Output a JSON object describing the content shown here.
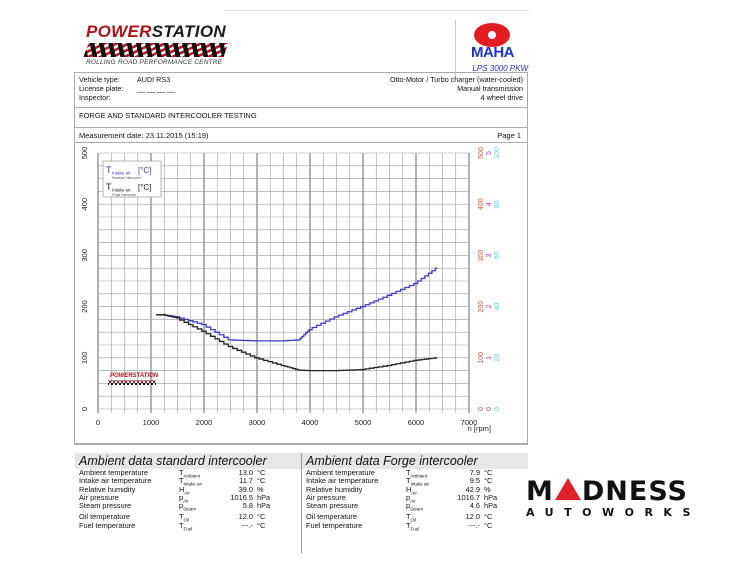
{
  "header": {
    "brand": {
      "part1": "POWER",
      "part2": "STATION",
      "subtitle": "ROLLING ROAD PERFORMANCE CENTRE"
    },
    "maha": {
      "word": "MAHA",
      "model": "LPS 3000 PKW"
    }
  },
  "vehicle": {
    "type_label": "Vehicle type:",
    "type_value": "AUDI RS3",
    "plate_label": "License plate:",
    "plate_value": "__ __ __ __",
    "inspector_label": "Inspector:",
    "engine": "Otto-Motor / Turbo charger (water-cooled)",
    "transmission": "Manual transmission",
    "drive": "4 wheel drive"
  },
  "test_title": "FORGE AND STANDARD INTERCOOLER TESTING",
  "measurement": {
    "date_label": "Measurement date: 23.11.2015 (15:19)",
    "page": "Page 1"
  },
  "legend": [
    {
      "label": "T",
      "sub": "Intake air",
      "unit": "[°C]",
      "caption": "Standard Intercooler",
      "color": "#3a3ac8"
    },
    {
      "label": "T",
      "sub": "Intake air",
      "unit": "[°C]",
      "caption": "Forge Intercooler",
      "color": "#222222"
    }
  ],
  "chart_data": {
    "type": "line",
    "title": "Intake air temperature vs engine speed",
    "xlabel": "n [rpm]",
    "ylabel": "T Intake air [°C]",
    "xlim": [
      0,
      7000
    ],
    "ylim": [
      0,
      500
    ],
    "x_ticks": [
      0,
      1000,
      2000,
      3000,
      4000,
      5000,
      6000,
      7000
    ],
    "y_ticks": [
      0,
      100,
      200,
      300,
      400,
      500
    ],
    "right_axes": [
      {
        "color": "#e0552a",
        "ticks": [
          0,
          100,
          200,
          300,
          400,
          500
        ]
      },
      {
        "color": "#d030d0",
        "ticks": [
          0,
          1,
          2,
          3,
          4,
          5
        ]
      },
      {
        "color": "#50d8e8",
        "ticks": [
          0,
          20,
          40,
          60,
          80,
          100
        ]
      }
    ],
    "grid": true,
    "legend_position": "top-left",
    "x": [
      1250,
      1500,
      2000,
      2500,
      3000,
      3500,
      3800,
      4000,
      4500,
      5000,
      5500,
      6000,
      6400
    ],
    "series": [
      {
        "name": "T Intake air - Standard Intercooler",
        "color": "#3a3ac8",
        "values": [
          184,
          180,
          165,
          135,
          133,
          133,
          135,
          155,
          180,
          200,
          222,
          245,
          275
        ]
      },
      {
        "name": "T Intake air - Forge Intercooler",
        "color": "#222222",
        "values": [
          184,
          178,
          152,
          122,
          100,
          85,
          76,
          75,
          75,
          77,
          85,
          95,
          100
        ]
      }
    ]
  },
  "axis_labels": {
    "x_ticks": [
      "0",
      "1000",
      "2000",
      "3000",
      "4000",
      "5000",
      "6000",
      "7000"
    ],
    "y_ticks": [
      "0",
      "100",
      "200",
      "300",
      "400",
      "500"
    ],
    "xlabel": "n [rpm]",
    "r1": [
      "0",
      "100",
      "200",
      "300",
      "400",
      "500"
    ],
    "r2": [
      "0",
      "1",
      "2",
      "3",
      "4",
      "5"
    ],
    "r3": [
      "0",
      "20",
      "40",
      "60",
      "80",
      "100"
    ]
  },
  "ambient_standard": {
    "title": "Ambient data standard intercooler",
    "rows": [
      {
        "name": "Ambient temperature",
        "sym": "T",
        "sub": "Ambient",
        "value": "13.0",
        "unit": "°C"
      },
      {
        "name": "Intake air temperature",
        "sym": "T",
        "sub": "Intake air",
        "value": "11.7",
        "unit": "°C"
      },
      {
        "name": "Relative humidity",
        "sym": "H",
        "sub": "Air",
        "value": "39.0",
        "unit": "%"
      },
      {
        "name": "Air pressure",
        "sym": "p",
        "sub": "Air",
        "value": "1016.5",
        "unit": "hPa"
      },
      {
        "name": "Steam pressure",
        "sym": "p",
        "sub": "Steam",
        "value": "5.8",
        "unit": "hPa"
      },
      {
        "name": "Oil temperature",
        "sym": "T",
        "sub": "Oil",
        "value": "12.0",
        "unit": "°C"
      },
      {
        "name": "Fuel temperature",
        "sym": "T",
        "sub": "Fuel",
        "value": "---.-",
        "unit": "°C"
      }
    ]
  },
  "ambient_forge": {
    "title": "Ambient data Forge intercooler",
    "rows": [
      {
        "name": "Ambient temperature",
        "sym": "T",
        "sub": "Ambient",
        "value": "7.9",
        "unit": "°C"
      },
      {
        "name": "Intake air temperature",
        "sym": "T",
        "sub": "Intake air",
        "value": "9.5",
        "unit": "°C"
      },
      {
        "name": "Relative humidity",
        "sym": "H",
        "sub": "Air",
        "value": "42.9",
        "unit": "%"
      },
      {
        "name": "Air pressure",
        "sym": "p",
        "sub": "Air",
        "value": "1016.7",
        "unit": "hPa"
      },
      {
        "name": "Steam pressure",
        "sym": "p",
        "sub": "Steam",
        "value": "4.6",
        "unit": "hPa"
      },
      {
        "name": "Oil temperature",
        "sym": "T",
        "sub": "Oil",
        "value": "12.0",
        "unit": "°C"
      },
      {
        "name": "Fuel temperature",
        "sym": "T",
        "sub": "Fuel",
        "value": "---.-",
        "unit": "°C"
      }
    ]
  },
  "madness_logo": {
    "top_a": "M",
    "top_b": "DNESS",
    "bottom": "AUTOWORKS"
  }
}
